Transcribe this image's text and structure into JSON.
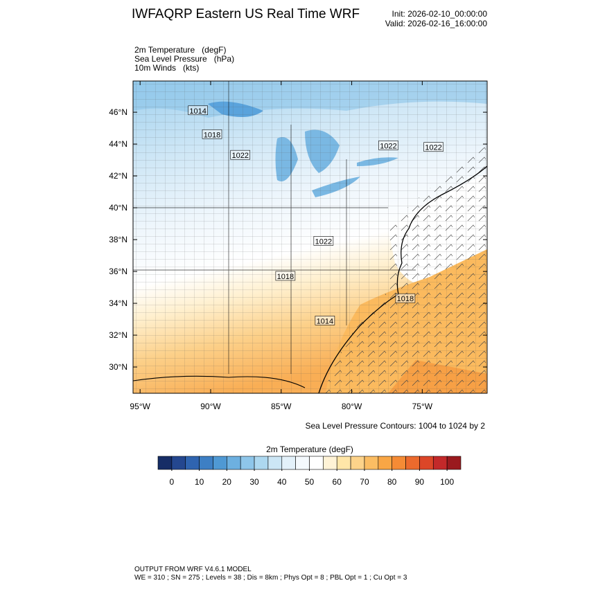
{
  "header": {
    "title": "IWFAQRP Eastern US Real Time WRF",
    "init": "Init: 2026-02-10_00:00:00",
    "valid": "Valid: 2026-02-16_16:00:00"
  },
  "fields": [
    "2m Temperature   (degF)",
    "Sea Level Pressure   (hPa)",
    "10m Winds   (kts)"
  ],
  "map": {
    "latlim": [
      28.35,
      47.96
    ],
    "lonlim": [
      -95.5,
      -70.4
    ],
    "latticks": [
      {
        "value": 30,
        "label": "30°N"
      },
      {
        "value": 32,
        "label": "32°N"
      },
      {
        "value": 34,
        "label": "34°N"
      },
      {
        "value": 36,
        "label": "36°N"
      },
      {
        "value": 38,
        "label": "38°N"
      },
      {
        "value": 40,
        "label": "40°N"
      },
      {
        "value": 42,
        "label": "42°N"
      },
      {
        "value": 44,
        "label": "44°N"
      },
      {
        "value": 46,
        "label": "46°N"
      }
    ],
    "lonticks": [
      {
        "value": -95,
        "label": "95°W"
      },
      {
        "value": -90,
        "label": "90°W"
      },
      {
        "value": -85,
        "label": "85°W"
      },
      {
        "value": -80,
        "label": "80°W"
      },
      {
        "value": -75,
        "label": "75°W"
      }
    ],
    "contour_labels": [
      {
        "value": 1014,
        "lat": 46.1,
        "lon": -90.9
      },
      {
        "value": 1018,
        "lat": 44.6,
        "lon": -89.9
      },
      {
        "value": 1022,
        "lat": 43.3,
        "lon": -87.9
      },
      {
        "value": 1022,
        "lat": 43.9,
        "lon": -77.4
      },
      {
        "value": 1022,
        "lat": 43.8,
        "lon": -74.2
      },
      {
        "value": 1022,
        "lat": 37.9,
        "lon": -82.0
      },
      {
        "value": 1018,
        "lat": 35.7,
        "lon": -84.7
      },
      {
        "value": 1018,
        "lat": 34.3,
        "lon": -76.2
      },
      {
        "value": 1014,
        "lat": 32.9,
        "lon": -81.9
      }
    ]
  },
  "contour_note": "Sea Level Pressure Contours: 1004 to 1024 by 2",
  "colorbar": {
    "title": "2m Temperature  (degF)",
    "range": [
      -5,
      105
    ],
    "colors": [
      "#162d66",
      "#24478f",
      "#2f64b0",
      "#3d7fc4",
      "#4f99d4",
      "#6db0e0",
      "#8ec6ea",
      "#add8f0",
      "#cce6f5",
      "#e3f1fa",
      "#f4f9fd",
      "#ffffff",
      "#fff3d6",
      "#ffe6a8",
      "#fdd38a",
      "#fbbd63",
      "#f9a645",
      "#f58b35",
      "#ec6a2d",
      "#dc4628",
      "#c3292a",
      "#9a1a1e"
    ],
    "ticks": [
      0,
      10,
      20,
      30,
      40,
      50,
      60,
      70,
      80,
      90,
      100
    ]
  },
  "footer": [
    "OUTPUT FROM WRF V4.6.1 MODEL",
    "WE = 310 ; SN = 275 ; Levels = 38 ; Dis = 8km ; Phys Opt = 8 ; PBL Opt = 1 ; Cu Opt = 3"
  ]
}
